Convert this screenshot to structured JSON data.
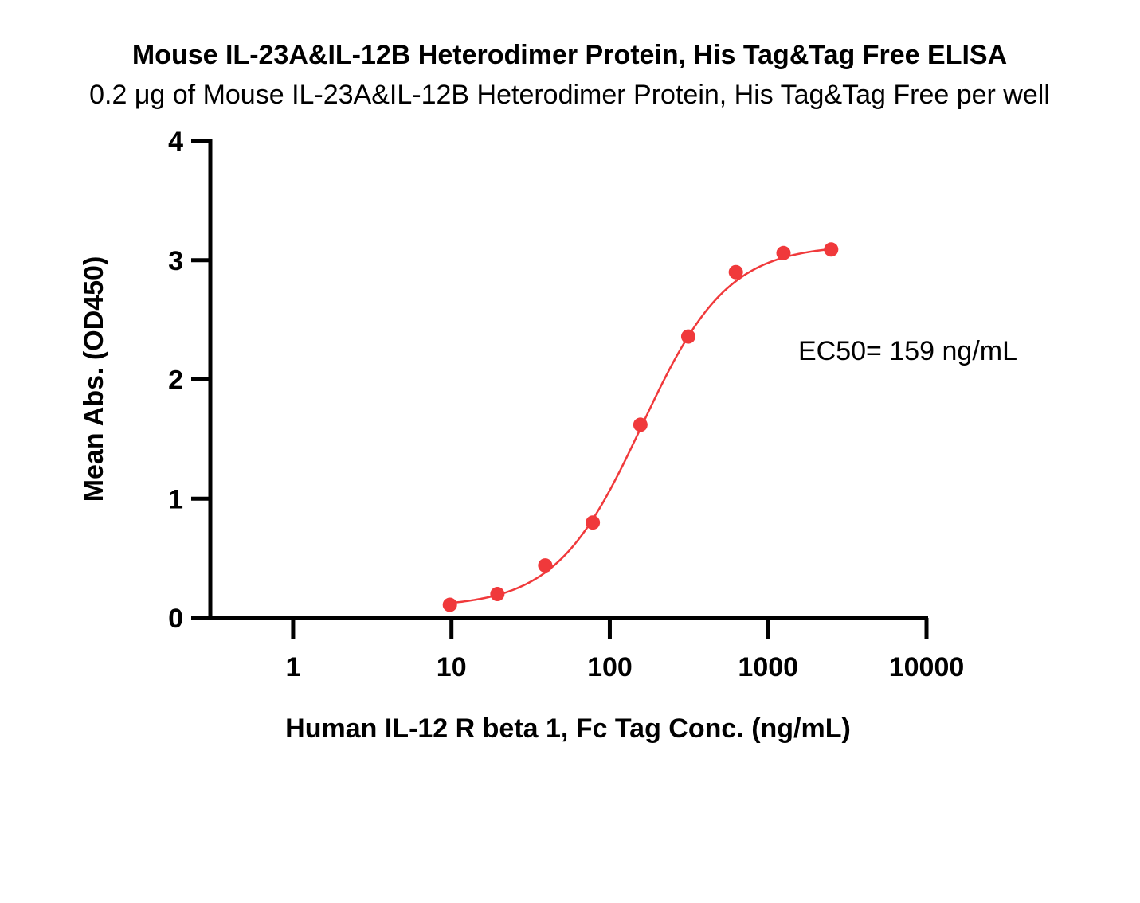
{
  "chart_data": {
    "type": "scatter",
    "title": "Mouse IL-23A&IL-12B Heterodimer Protein, His Tag&Tag Free ELISA",
    "subtitle": "0.2 μg of Mouse IL-23A&IL-12B Heterodimer Protein, His Tag&Tag Free per well",
    "xlabel": "Human IL-12 R beta 1, Fc Tag Conc. (ng/mL)",
    "ylabel": "Mean Abs. (OD450)",
    "x_scale": "log",
    "xlim": [
      0.3,
      10000
    ],
    "ylim": [
      0,
      4
    ],
    "x_ticks": [
      1,
      10,
      100,
      1000,
      10000
    ],
    "x_tick_labels": [
      "1",
      "10",
      "100",
      "1000",
      "10000"
    ],
    "y_ticks": [
      0,
      1,
      2,
      3,
      4
    ],
    "y_tick_labels": [
      "0",
      "1",
      "2",
      "3",
      "4"
    ],
    "grid": false,
    "legend": "none",
    "color": "#f0393b",
    "series": [
      {
        "x": [
          9.77,
          19.5,
          39.1,
          78.1,
          156,
          313,
          625,
          1250,
          2500
        ],
        "y": [
          0.11,
          0.2,
          0.44,
          0.8,
          1.62,
          2.36,
          2.9,
          3.06,
          3.09
        ]
      }
    ],
    "fit_curve": {
      "model": "4PL",
      "bottom": 0.09,
      "top": 3.13,
      "ec50": 159,
      "hill_slope": 1.6,
      "x_range": [
        9.77,
        2500
      ]
    },
    "annotations": [
      {
        "text": "EC50= 159 ng/mL"
      }
    ]
  }
}
